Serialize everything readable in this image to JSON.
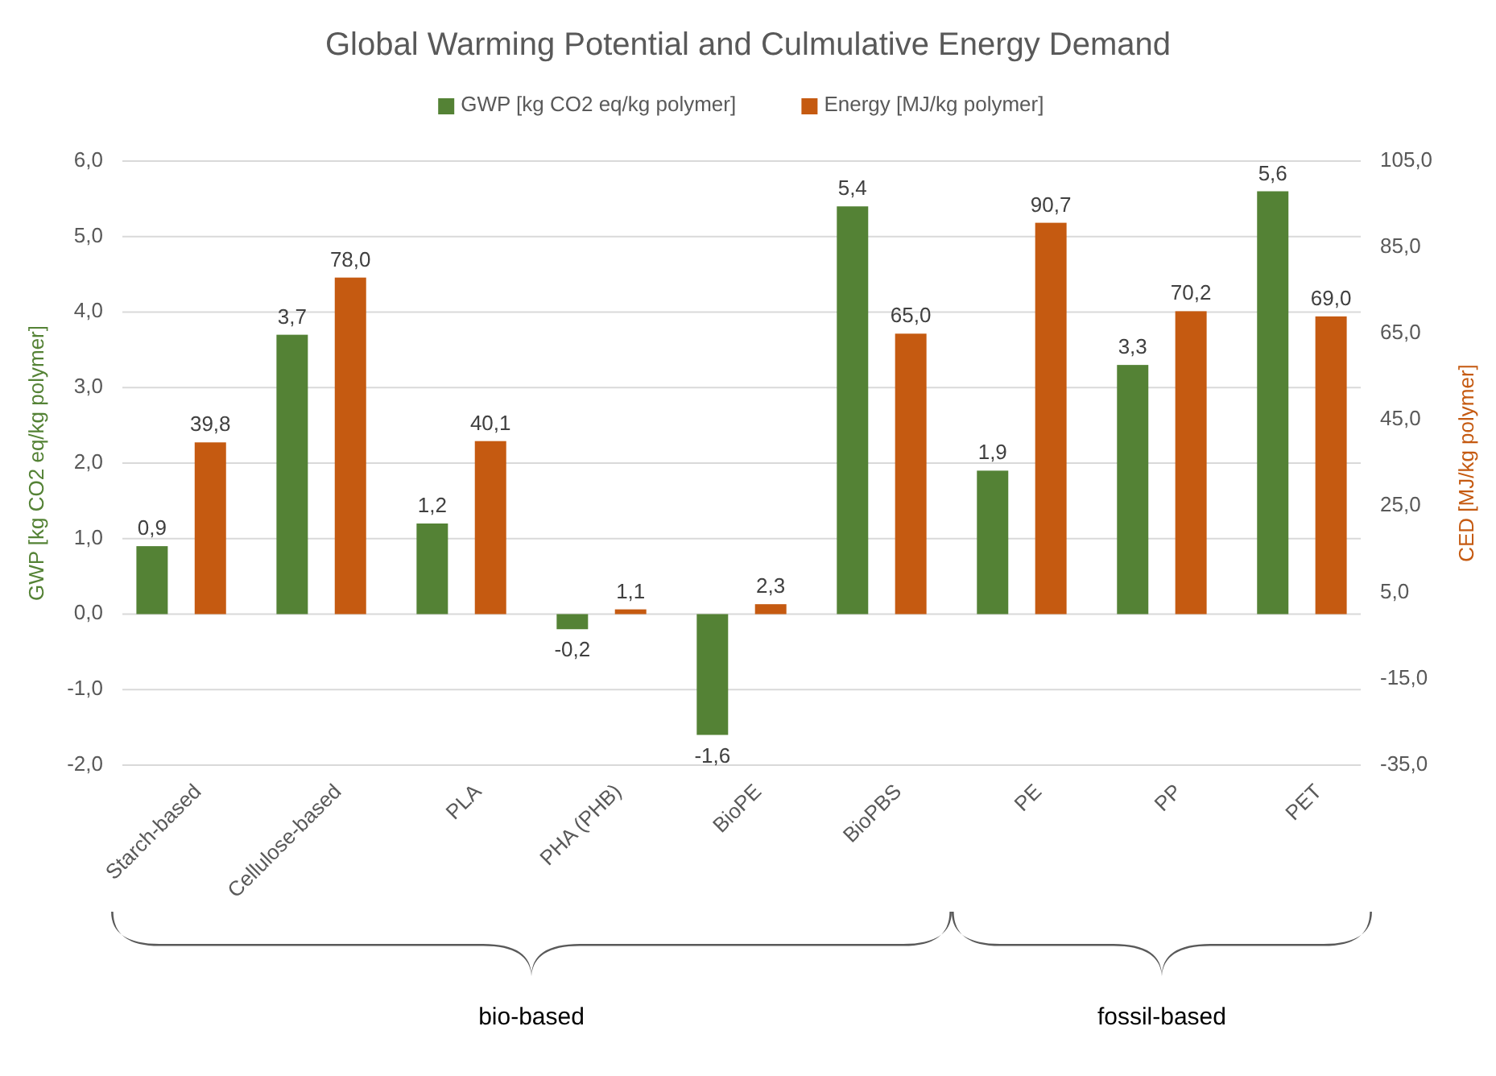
{
  "chart_data": {
    "type": "bar",
    "title": "Global Warming Potential and Culmulative Energy Demand",
    "categories": [
      "Starch-based",
      "Cellulose-based",
      "PLA",
      "PHA (PHB)",
      "BioPE",
      "BioPBS",
      "PE",
      "PP",
      "PET"
    ],
    "series": [
      {
        "name": "GWP [kg CO2 eq/kg polymer]",
        "color": "#548235",
        "values": [
          0.9,
          3.7,
          1.2,
          -0.2,
          -1.6,
          5.4,
          1.9,
          3.3,
          5.6
        ],
        "value_labels": [
          "0,9",
          "3,7",
          "1,2",
          "-0,2",
          "-1,6",
          "5,4",
          "1,9",
          "3,3",
          "5,6"
        ]
      },
      {
        "name": "Energy [MJ/kg polymer]",
        "color": "#c55a11",
        "axis": "y2",
        "values": [
          39.8,
          78.0,
          40.1,
          1.1,
          2.3,
          65.0,
          90.7,
          70.2,
          69.0
        ],
        "value_labels": [
          "39,8",
          "78,0",
          "40,1",
          "1,1",
          "2,3",
          "65,0",
          "90,7",
          "70,2",
          "69,0"
        ]
      }
    ],
    "ylabel": "GWP [kg CO2 eq/kg polymer]",
    "y2label": "CED [MJ/kg polymer]",
    "ylim": [
      -2,
      6
    ],
    "yticks": [
      {
        "value": -2,
        "label": "-2,0"
      },
      {
        "value": -1,
        "label": "-1,0"
      },
      {
        "value": 0,
        "label": "0,0"
      },
      {
        "value": 1,
        "label": "1,0"
      },
      {
        "value": 2,
        "label": "2,0"
      },
      {
        "value": 3,
        "label": "3,0"
      },
      {
        "value": 4,
        "label": "4,0"
      },
      {
        "value": 5,
        "label": "5,0"
      },
      {
        "value": 6,
        "label": "6,0"
      }
    ],
    "y2lim": [
      -35,
      105
    ],
    "y2ticks": [
      {
        "value": -35,
        "label": "-35,0"
      },
      {
        "value": -15,
        "label": "-15,0"
      },
      {
        "value": 5,
        "label": "5,0"
      },
      {
        "value": 25,
        "label": "25,0"
      },
      {
        "value": 45,
        "label": "45,0"
      },
      {
        "value": 65,
        "label": "65,0"
      },
      {
        "value": 85,
        "label": "85,0"
      },
      {
        "value": 105,
        "label": "105,0"
      }
    ],
    "grid": "y",
    "legend": "top",
    "annotations": [
      "bio-based",
      "fossil-based"
    ]
  }
}
